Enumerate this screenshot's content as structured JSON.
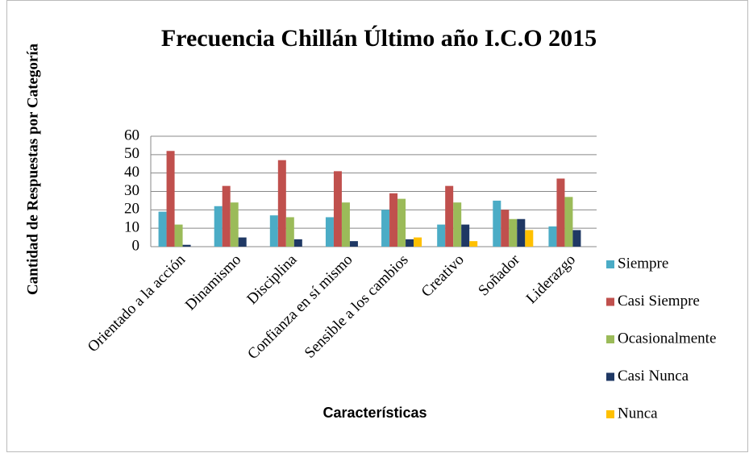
{
  "chart_data": {
    "type": "bar",
    "title": "Frecuencia Chillán Último año I.C.O 2015",
    "x_label": "Características",
    "y_label": "Cantidad de Respuestas por Categoría",
    "categories": [
      "Orientado a la acción",
      "Dinamismo",
      "Disciplina",
      "Confianza en sí mismo",
      "Sensible a los cambios",
      "Creativo",
      "Soñador",
      "Liderazgo"
    ],
    "series": [
      {
        "name": "Siempre",
        "color": "#4bacc6",
        "values": [
          19,
          22,
          17,
          16,
          20,
          12,
          25,
          11
        ]
      },
      {
        "name": "Casi Siempre",
        "color": "#c0504d",
        "values": [
          52,
          33,
          47,
          41,
          29,
          33,
          20,
          37
        ]
      },
      {
        "name": "Ocasionalmente",
        "color": "#9bbb59",
        "values": [
          12,
          24,
          16,
          24,
          26,
          24,
          15,
          27
        ]
      },
      {
        "name": "Casi Nunca",
        "color": "#1f3864",
        "values": [
          1,
          5,
          4,
          3,
          4,
          12,
          15,
          9
        ]
      },
      {
        "name": "Nunca",
        "color": "#ffc000",
        "values": [
          0,
          0,
          0,
          0,
          5,
          3,
          9,
          0
        ]
      }
    ],
    "ylim": [
      0,
      60
    ],
    "yticks": [
      0,
      10,
      20,
      30,
      40,
      50,
      60
    ],
    "grid": true,
    "legend": "right"
  }
}
